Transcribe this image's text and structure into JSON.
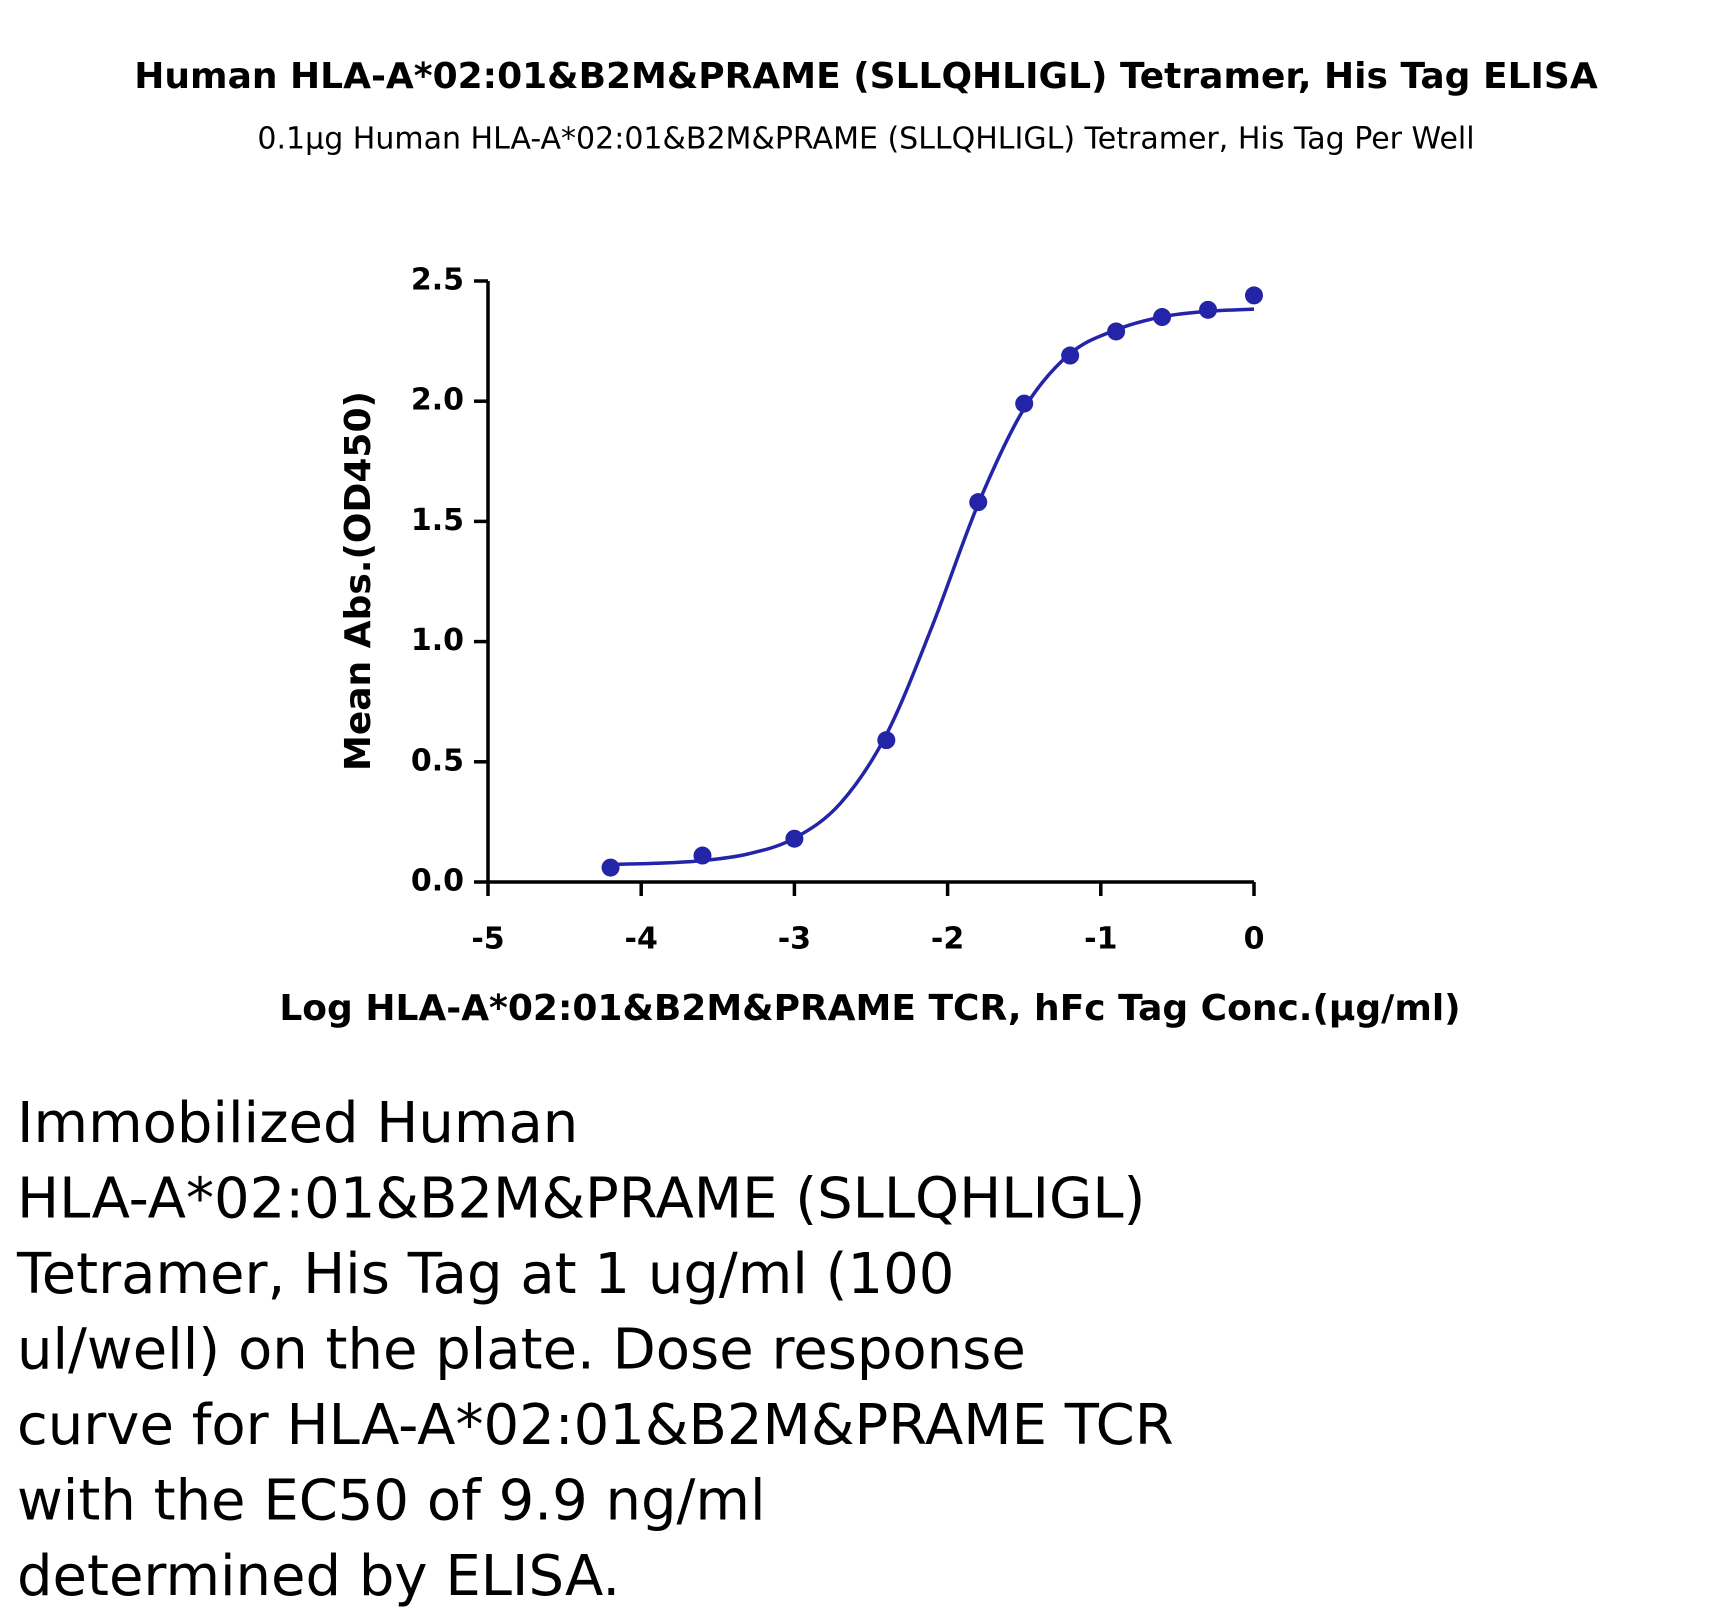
{
  "chart_data": {
    "type": "scatter",
    "title": "Human HLA-A*02:01&B2M&PRAME (SLLQHLIGL) Tetramer, His Tag ELISA",
    "subtitle": "0.1µg Human HLA-A*02:01&B2M&PRAME (SLLQHLIGL) Tetramer, His Tag Per Well",
    "x_label": "Log HLA-A*02:01&B2M&PRAME TCR, hFc Tag Conc.(µg/ml)",
    "y_label": "Mean Abs.(OD450)",
    "color": "#2424a8",
    "x": [
      -4.2,
      -3.6,
      -3.0,
      -2.4,
      -1.8,
      -1.5,
      -1.2,
      -0.9,
      -0.6,
      -0.3,
      0
    ],
    "values": [
      0.06,
      0.11,
      0.18,
      0.59,
      1.58,
      1.99,
      2.19,
      2.29,
      2.35,
      2.38,
      2.44
    ],
    "fit_curve": {
      "x": [
        -4.2,
        -3.9,
        -3.6,
        -3.3,
        -3.0,
        -2.7,
        -2.4,
        -2.1,
        -1.8,
        -1.5,
        -1.2,
        -0.9,
        -0.6,
        -0.3,
        0
      ],
      "values": [
        0.073,
        0.078,
        0.089,
        0.117,
        0.182,
        0.327,
        0.613,
        1.065,
        1.573,
        1.97,
        2.198,
        2.297,
        2.351,
        2.374,
        2.383
      ]
    },
    "xlim": [
      -5,
      0
    ],
    "xticks": [
      -5,
      -4,
      -3,
      -2,
      -1,
      0
    ],
    "ylim": [
      0,
      2.5
    ],
    "yticks": [
      {
        "value": 0,
        "label": "0.0"
      },
      0.5,
      {
        "value": 1,
        "label": "1.0"
      },
      1.5,
      {
        "value": 2,
        "label": "2.0"
      },
      2.5
    ]
  },
  "description_lines": [
    "Immobilized Human",
    "HLA-A*02:01&B2M&PRAME (SLLQHLIGL)",
    "Tetramer, His Tag at 1 ug/ml (100",
    "ul/well) on the plate. Dose response",
    "curve for HLA-A*02:01&B2M&PRAME TCR",
    "with the EC50 of 9.9 ng/ml",
    "determined by ELISA."
  ]
}
